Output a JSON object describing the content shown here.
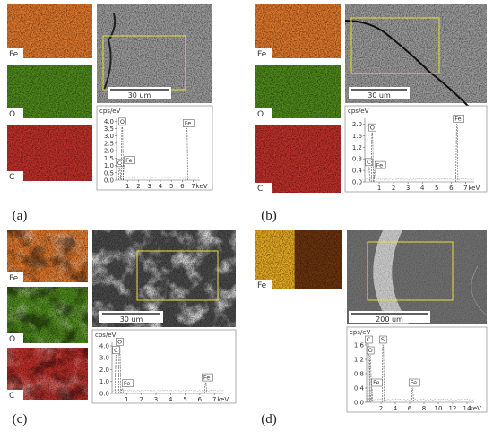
{
  "panels": [
    {
      "label": "(a)",
      "maps": [
        "Fe",
        "O",
        "C"
      ],
      "scale_bar": "30 um",
      "spectrum": {
        "ylabel": "cps/eV",
        "xunit": "keV",
        "xlim": [
          0,
          7.6
        ],
        "ylim": [
          0,
          4.2
        ],
        "xticks": [
          1,
          2,
          3,
          4,
          5,
          6,
          7
        ],
        "yticks": [
          {
            "value": 0,
            "label": "0.0"
          },
          {
            "value": 0.5,
            "label": "0.5"
          },
          {
            "value": 1,
            "label": "1.0"
          },
          {
            "value": 1.5,
            "label": "1.5"
          },
          {
            "value": 2,
            "label": "2.0"
          },
          {
            "value": 2.5,
            "label": "2.5"
          },
          {
            "value": 3,
            "label": "3.0"
          },
          {
            "value": 3.5,
            "label": "3.5"
          },
          {
            "value": 4,
            "label": "4.0"
          }
        ],
        "peaks": [
          {
            "label": "C",
            "x": 0.28,
            "y": 0.8
          },
          {
            "label": "O",
            "x": 0.52,
            "y": 3.6
          },
          {
            "label": "Fe",
            "x": 0.7,
            "y": 1.0
          },
          {
            "label": "Fe",
            "x": 6.4,
            "y": 3.5
          }
        ]
      }
    },
    {
      "label": "(b)",
      "maps": [
        "Fe",
        "O",
        "C"
      ],
      "scale_bar": "30 um",
      "spectrum": {
        "ylabel": "cps/eV",
        "xunit": "keV",
        "xlim": [
          0,
          7.6
        ],
        "ylim": [
          0,
          2.2
        ],
        "xticks": [
          1,
          2,
          3,
          4,
          5,
          6,
          7
        ],
        "yticks": [
          {
            "value": 0,
            "label": "0.0"
          },
          {
            "value": 0.4,
            "label": "0.4"
          },
          {
            "value": 0.8,
            "label": "0.8"
          },
          {
            "value": 1.2,
            "label": "1.2"
          },
          {
            "value": 1.6,
            "label": "1.6"
          },
          {
            "value": 2,
            "label": "2.0"
          }
        ],
        "peaks": [
          {
            "label": "C",
            "x": 0.28,
            "y": 0.5
          },
          {
            "label": "O",
            "x": 0.52,
            "y": 1.7
          },
          {
            "label": "Fe",
            "x": 0.7,
            "y": 0.4
          },
          {
            "label": "Fe",
            "x": 6.4,
            "y": 2.0
          }
        ]
      }
    },
    {
      "label": "(c)",
      "maps": [
        "Fe",
        "O",
        "C"
      ],
      "scale_bar": "30 um",
      "spectrum": {
        "ylabel": "cps/eV",
        "xunit": "keV",
        "xlim": [
          0,
          7.6
        ],
        "ylim": [
          0,
          4.3
        ],
        "xticks": [
          1,
          2,
          3,
          4,
          5,
          6,
          7
        ],
        "yticks": [
          {
            "value": 0,
            "label": "0.0"
          },
          {
            "value": 1,
            "label": "1.0"
          },
          {
            "value": 2,
            "label": "2.0"
          },
          {
            "value": 3,
            "label": "3.0"
          },
          {
            "value": 4,
            "label": "4.0"
          }
        ],
        "peaks": [
          {
            "label": "O",
            "x": 0.52,
            "y": 3.9
          },
          {
            "label": "C",
            "x": 0.28,
            "y": 3.2
          },
          {
            "label": "Fe",
            "x": 0.7,
            "y": 0.4
          },
          {
            "label": "Fe",
            "x": 6.4,
            "y": 0.9
          }
        ]
      }
    },
    {
      "label": "(d)",
      "maps": [
        "Fe"
      ],
      "scale_bar": "200 um",
      "spectrum": {
        "ylabel": "cps/eV",
        "xunit": "keV",
        "xlim": [
          0,
          15
        ],
        "ylim": [
          0,
          1.75
        ],
        "xticks": [
          2,
          4,
          6,
          8,
          10,
          12,
          14
        ],
        "yticks": [
          {
            "value": 0,
            "label": "0.0"
          },
          {
            "value": 0.4,
            "label": "0.4"
          },
          {
            "value": 0.8,
            "label": "0.8"
          },
          {
            "value": 1.2,
            "label": "1.2"
          },
          {
            "value": 1.6,
            "label": "1.6"
          }
        ],
        "peaks": [
          {
            "label": "C",
            "x": 0.28,
            "y": 1.6
          },
          {
            "label": "O",
            "x": 0.52,
            "y": 1.3
          },
          {
            "label": "S",
            "x": 2.3,
            "y": 1.6
          },
          {
            "label": "Fe",
            "x": 0.7,
            "y": 0.4
          },
          {
            "label": "Fe",
            "x": 6.4,
            "y": 0.4
          }
        ]
      }
    }
  ]
}
